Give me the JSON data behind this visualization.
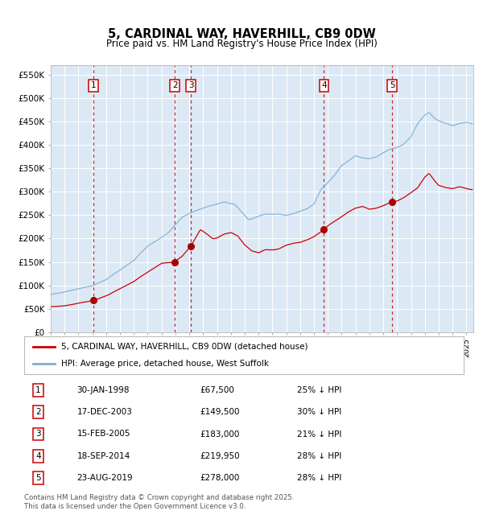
{
  "title": "5, CARDINAL WAY, HAVERHILL, CB9 0DW",
  "subtitle": "Price paid vs. HM Land Registry's House Price Index (HPI)",
  "fig_bg_color": "#ffffff",
  "plot_bg_color": "#dce9f5",
  "grid_color": "#ffffff",
  "hpi_line_color": "#7bafd4",
  "price_line_color": "#cc0000",
  "marker_color": "#aa0000",
  "vline_color": "#cc0000",
  "ylim": [
    0,
    570000
  ],
  "yticks": [
    0,
    50000,
    100000,
    150000,
    200000,
    250000,
    300000,
    350000,
    400000,
    450000,
    500000,
    550000
  ],
  "ytick_labels": [
    "£0",
    "£50K",
    "£100K",
    "£150K",
    "£200K",
    "£250K",
    "£300K",
    "£350K",
    "£400K",
    "£450K",
    "£500K",
    "£550K"
  ],
  "legend_label_price": "5, CARDINAL WAY, HAVERHILL, CB9 0DW (detached house)",
  "legend_label_hpi": "HPI: Average price, detached house, West Suffolk",
  "footnote": "Contains HM Land Registry data © Crown copyright and database right 2025.\nThis data is licensed under the Open Government Licence v3.0.",
  "sale_dates": [
    1998.08,
    2003.96,
    2005.12,
    2014.72,
    2019.64
  ],
  "sale_prices": [
    67500,
    149500,
    183000,
    219950,
    278000
  ],
  "sale_labels": [
    "1",
    "2",
    "3",
    "4",
    "5"
  ],
  "sale_info": [
    [
      "1",
      "30-JAN-1998",
      "£67,500",
      "25% ↓ HPI"
    ],
    [
      "2",
      "17-DEC-2003",
      "£149,500",
      "30% ↓ HPI"
    ],
    [
      "3",
      "15-FEB-2005",
      "£183,000",
      "21% ↓ HPI"
    ],
    [
      "4",
      "18-SEP-2014",
      "£219,950",
      "28% ↓ HPI"
    ],
    [
      "5",
      "23-AUG-2019",
      "£278,000",
      "28% ↓ HPI"
    ]
  ],
  "xmin": 1995.0,
  "xmax": 2025.5
}
